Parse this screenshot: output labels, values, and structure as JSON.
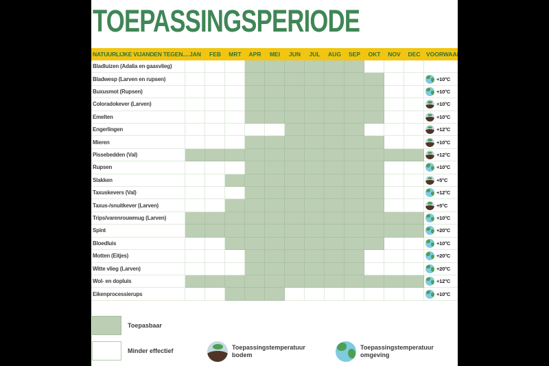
{
  "title": "TOEPASSINGSPERIODE",
  "legend": {
    "toepasbaar": "Toepasbaar",
    "minder_effectief": "Minder effectief",
    "bodem": {
      "line1": "Toepassingstemperatuur",
      "line2": "bodem"
    },
    "omgeving": {
      "line1": "Toepassingstemperatuur",
      "line2": "omgeving"
    }
  },
  "colors": {
    "background": "#000000",
    "panel": "#ffffff",
    "title_green": "#3f8656",
    "header_yellow": "#f2c511",
    "header_text_green": "#2e7239",
    "cell_green": "#bccfb5",
    "grid_line": "#e0ebdd",
    "grid_line_green": "#abc2a4",
    "globe_blue": "#7ecbdf",
    "soil_brown": "#4f3526",
    "leaf_green": "#4f9e55"
  },
  "chart_data": {
    "type": "table",
    "title": "TOEPASSINGSPERIODE",
    "row_header": "NATUURLIJKE VIJANDEN TEGEN....",
    "months": [
      "JAN",
      "FEB",
      "MRT",
      "APR",
      "MEI",
      "JUN",
      "JUL",
      "AUG",
      "SEP",
      "OKT",
      "NOV",
      "DEC"
    ],
    "condition_column": "VOORWAARDE",
    "cell_legend": {
      "green": "Toepasbaar",
      "white": "Minder effectief"
    },
    "icon_legend": {
      "bodem": "Toepassingstemperatuur bodem",
      "omgeving": "Toepassingstemperatuur omgeving"
    },
    "rows": [
      {
        "name": "Bladluizen (Adalia en gaasvlieg)",
        "start": 4,
        "end": 9,
        "start_month": "APR",
        "end_month": "SEP",
        "icon": null,
        "temp": null
      },
      {
        "name": "Bladwesp (Larven en rupsen)",
        "start": 4,
        "end": 10,
        "start_month": "APR",
        "end_month": "OKT",
        "icon": "omgeving",
        "temp": "+10°C"
      },
      {
        "name": "Buxusmot (Rupsen)",
        "start": 4,
        "end": 10,
        "start_month": "APR",
        "end_month": "OKT",
        "icon": "omgeving",
        "temp": "+10°C"
      },
      {
        "name": "Coloradokever (Larven)",
        "start": 4,
        "end": 10,
        "start_month": "APR",
        "end_month": "OKT",
        "icon": "bodem",
        "temp": "+10°C"
      },
      {
        "name": "Emelten",
        "start": 4,
        "end": 10,
        "start_month": "APR",
        "end_month": "OKT",
        "icon": "bodem",
        "temp": "+10°C"
      },
      {
        "name": "Engerlingen",
        "start": 6,
        "end": 9,
        "start_month": "JUN",
        "end_month": "SEP",
        "icon": "bodem",
        "temp": "+12°C"
      },
      {
        "name": "Mieren",
        "start": 4,
        "end": 10,
        "start_month": "APR",
        "end_month": "OKT",
        "icon": "bodem",
        "temp": "+10°C"
      },
      {
        "name": "Pissebedden (Val)",
        "start": 1,
        "end": 12,
        "start_month": "JAN",
        "end_month": "DEC",
        "icon": "bodem",
        "temp": "+12°C"
      },
      {
        "name": "Rupsen",
        "start": 4,
        "end": 10,
        "start_month": "APR",
        "end_month": "OKT",
        "icon": "omgeving",
        "temp": "+10°C"
      },
      {
        "name": "Slakken",
        "start": 3,
        "end": 10,
        "start_month": "MRT",
        "end_month": "OKT",
        "icon": "bodem",
        "temp": "+5°C"
      },
      {
        "name": "Taxuskevers (Val)",
        "start": 4,
        "end": 10,
        "start_month": "APR",
        "end_month": "OKT",
        "icon": "omgeving",
        "temp": "+12°C"
      },
      {
        "name": "Taxus-/snuitkever (Larven)",
        "start": 3,
        "end": 10,
        "start_month": "MRT",
        "end_month": "OKT",
        "icon": "bodem",
        "temp": "+5°C"
      },
      {
        "name": "Trips/varenrouwmug (Larven)",
        "start": 1,
        "end": 12,
        "start_month": "JAN",
        "end_month": "DEC",
        "icon": "omgeving",
        "temp": "+10°C"
      },
      {
        "name": "Spint",
        "start": 1,
        "end": 12,
        "start_month": "JAN",
        "end_month": "DEC",
        "icon": "omgeving",
        "temp": "+20°C"
      },
      {
        "name": "Bloedluis",
        "start": 3,
        "end": 10,
        "start_month": "MRT",
        "end_month": "OKT",
        "icon": "omgeving",
        "temp": "+10°C"
      },
      {
        "name": "Motten (Eitjes)",
        "start": 4,
        "end": 9,
        "start_month": "APR",
        "end_month": "SEP",
        "icon": "omgeving",
        "temp": "+20°C"
      },
      {
        "name": "Witte vlieg (Larven)",
        "start": 4,
        "end": 9,
        "start_month": "APR",
        "end_month": "SEP",
        "icon": "omgeving",
        "temp": "+20°C"
      },
      {
        "name": "Wol- en dopluis",
        "start": 1,
        "end": 12,
        "start_month": "JAN",
        "end_month": "DEC",
        "icon": "omgeving",
        "temp": "+12°C"
      },
      {
        "name": "Eikenprocessierups",
        "start": 3,
        "end": 5,
        "start_month": "MRT",
        "end_month": "MEI",
        "icon": "omgeving",
        "temp": "+10°C"
      }
    ]
  }
}
